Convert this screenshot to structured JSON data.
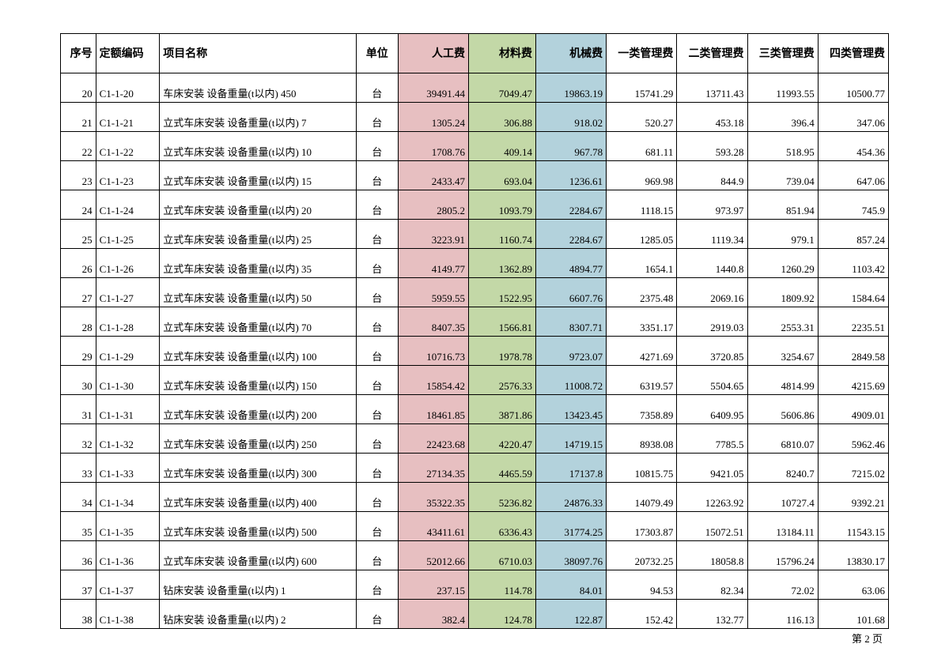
{
  "table": {
    "header_bg_labor": "#e7bfc1",
    "header_bg_mat": "#c3d8a7",
    "header_bg_mach": "#b3d2dc",
    "columns": {
      "seq": "序号",
      "code": "定额编码",
      "name": "项目名称",
      "unit": "单位",
      "labor": "人工费",
      "material": "材料费",
      "machine": "机械费",
      "mgmt1": "一类管理费",
      "mgmt2": "二类管理费",
      "mgmt3": "三类管理费",
      "mgmt4": "四类管理费"
    },
    "rows": [
      {
        "seq": "20",
        "code": "C1-1-20",
        "name": "车床安装 设备重量(t以内) 450",
        "unit": "台",
        "labor": "39491.44",
        "mat": "7049.47",
        "mach": "19863.19",
        "m1": "15741.29",
        "m2": "13711.43",
        "m3": "11993.55",
        "m4": "10500.77"
      },
      {
        "seq": "21",
        "code": "C1-1-21",
        "name": "立式车床安装 设备重量(t以内) 7",
        "unit": "台",
        "labor": "1305.24",
        "mat": "306.88",
        "mach": "918.02",
        "m1": "520.27",
        "m2": "453.18",
        "m3": "396.4",
        "m4": "347.06"
      },
      {
        "seq": "22",
        "code": "C1-1-22",
        "name": "立式车床安装 设备重量(t以内) 10",
        "unit": "台",
        "labor": "1708.76",
        "mat": "409.14",
        "mach": "967.78",
        "m1": "681.11",
        "m2": "593.28",
        "m3": "518.95",
        "m4": "454.36"
      },
      {
        "seq": "23",
        "code": "C1-1-23",
        "name": "立式车床安装 设备重量(t以内) 15",
        "unit": "台",
        "labor": "2433.47",
        "mat": "693.04",
        "mach": "1236.61",
        "m1": "969.98",
        "m2": "844.9",
        "m3": "739.04",
        "m4": "647.06"
      },
      {
        "seq": "24",
        "code": "C1-1-24",
        "name": "立式车床安装 设备重量(t以内) 20",
        "unit": "台",
        "labor": "2805.2",
        "mat": "1093.79",
        "mach": "2284.67",
        "m1": "1118.15",
        "m2": "973.97",
        "m3": "851.94",
        "m4": "745.9"
      },
      {
        "seq": "25",
        "code": "C1-1-25",
        "name": "立式车床安装 设备重量(t以内) 25",
        "unit": "台",
        "labor": "3223.91",
        "mat": "1160.74",
        "mach": "2284.67",
        "m1": "1285.05",
        "m2": "1119.34",
        "m3": "979.1",
        "m4": "857.24"
      },
      {
        "seq": "26",
        "code": "C1-1-26",
        "name": "立式车床安装 设备重量(t以内) 35",
        "unit": "台",
        "labor": "4149.77",
        "mat": "1362.89",
        "mach": "4894.77",
        "m1": "1654.1",
        "m2": "1440.8",
        "m3": "1260.29",
        "m4": "1103.42"
      },
      {
        "seq": "27",
        "code": "C1-1-27",
        "name": "立式车床安装 设备重量(t以内) 50",
        "unit": "台",
        "labor": "5959.55",
        "mat": "1522.95",
        "mach": "6607.76",
        "m1": "2375.48",
        "m2": "2069.16",
        "m3": "1809.92",
        "m4": "1584.64"
      },
      {
        "seq": "28",
        "code": "C1-1-28",
        "name": "立式车床安装 设备重量(t以内) 70",
        "unit": "台",
        "labor": "8407.35",
        "mat": "1566.81",
        "mach": "8307.71",
        "m1": "3351.17",
        "m2": "2919.03",
        "m3": "2553.31",
        "m4": "2235.51"
      },
      {
        "seq": "29",
        "code": "C1-1-29",
        "name": "立式车床安装 设备重量(t以内) 100",
        "unit": "台",
        "labor": "10716.73",
        "mat": "1978.78",
        "mach": "9723.07",
        "m1": "4271.69",
        "m2": "3720.85",
        "m3": "3254.67",
        "m4": "2849.58"
      },
      {
        "seq": "30",
        "code": "C1-1-30",
        "name": "立式车床安装 设备重量(t以内) 150",
        "unit": "台",
        "labor": "15854.42",
        "mat": "2576.33",
        "mach": "11008.72",
        "m1": "6319.57",
        "m2": "5504.65",
        "m3": "4814.99",
        "m4": "4215.69"
      },
      {
        "seq": "31",
        "code": "C1-1-31",
        "name": "立式车床安装 设备重量(t以内) 200",
        "unit": "台",
        "labor": "18461.85",
        "mat": "3871.86",
        "mach": "13423.45",
        "m1": "7358.89",
        "m2": "6409.95",
        "m3": "5606.86",
        "m4": "4909.01"
      },
      {
        "seq": "32",
        "code": "C1-1-32",
        "name": "立式车床安装 设备重量(t以内) 250",
        "unit": "台",
        "labor": "22423.68",
        "mat": "4220.47",
        "mach": "14719.15",
        "m1": "8938.08",
        "m2": "7785.5",
        "m3": "6810.07",
        "m4": "5962.46"
      },
      {
        "seq": "33",
        "code": "C1-1-33",
        "name": "立式车床安装 设备重量(t以内) 300",
        "unit": "台",
        "labor": "27134.35",
        "mat": "4465.59",
        "mach": "17137.8",
        "m1": "10815.75",
        "m2": "9421.05",
        "m3": "8240.7",
        "m4": "7215.02"
      },
      {
        "seq": "34",
        "code": "C1-1-34",
        "name": "立式车床安装 设备重量(t以内) 400",
        "unit": "台",
        "labor": "35322.35",
        "mat": "5236.82",
        "mach": "24876.33",
        "m1": "14079.49",
        "m2": "12263.92",
        "m3": "10727.4",
        "m4": "9392.21"
      },
      {
        "seq": "35",
        "code": "C1-1-35",
        "name": "立式车床安装 设备重量(t以内) 500",
        "unit": "台",
        "labor": "43411.61",
        "mat": "6336.43",
        "mach": "31774.25",
        "m1": "17303.87",
        "m2": "15072.51",
        "m3": "13184.11",
        "m4": "11543.15"
      },
      {
        "seq": "36",
        "code": "C1-1-36",
        "name": "立式车床安装 设备重量(t以内) 600",
        "unit": "台",
        "labor": "52012.66",
        "mat": "6710.03",
        "mach": "38097.76",
        "m1": "20732.25",
        "m2": "18058.8",
        "m3": "15796.24",
        "m4": "13830.17"
      },
      {
        "seq": "37",
        "code": "C1-1-37",
        "name": "钻床安装 设备重量(t以内) 1",
        "unit": "台",
        "labor": "237.15",
        "mat": "114.78",
        "mach": "84.01",
        "m1": "94.53",
        "m2": "82.34",
        "m3": "72.02",
        "m4": "63.06"
      },
      {
        "seq": "38",
        "code": "C1-1-38",
        "name": "钻床安装 设备重量(t以内) 2",
        "unit": "台",
        "labor": "382.4",
        "mat": "124.78",
        "mach": "122.87",
        "m1": "152.42",
        "m2": "132.77",
        "m3": "116.13",
        "m4": "101.68"
      }
    ]
  },
  "footer": "第 2 页"
}
